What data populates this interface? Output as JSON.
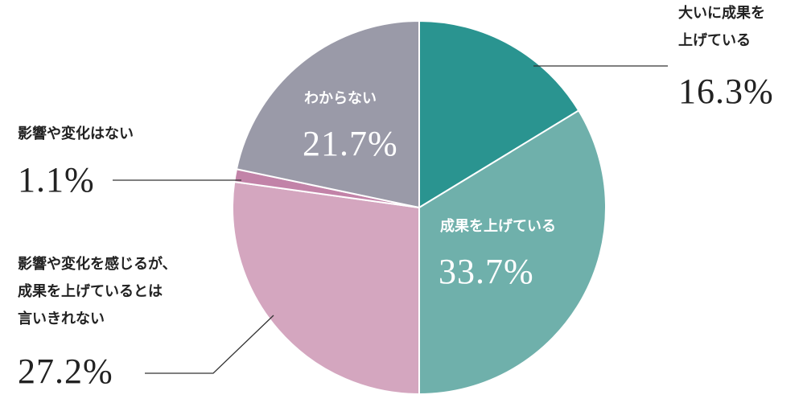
{
  "chart_data": {
    "type": "pie",
    "categories": [
      "大いに成果を\n上げている",
      "成果を上げている",
      "影響や変化を感じるが、\n成果を上げているとは\n言いきれない",
      "影響や変化はない",
      "わからない"
    ],
    "values": [
      16.3,
      33.7,
      27.2,
      1.1,
      21.7
    ],
    "value_labels": [
      "16.3%",
      "33.7%",
      "27.2%",
      "1.1%",
      "21.7%"
    ],
    "colors": [
      "#2a9490",
      "#6fb0ab",
      "#d4a6bf",
      "#c283a8",
      "#9a9aa8"
    ]
  }
}
